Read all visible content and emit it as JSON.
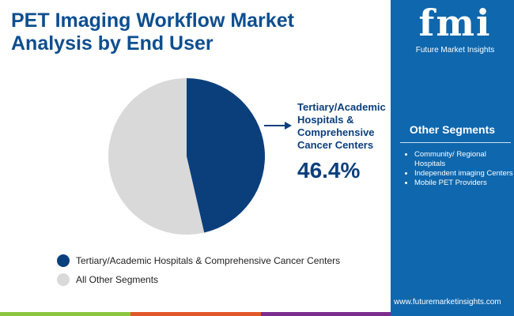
{
  "title": "PET Imaging Workflow Market Analysis by End User",
  "chart_data": {
    "type": "pie",
    "slices": [
      {
        "name": "Tertiary/Academic Hospitals & Comprehensive Cancer Centers",
        "value": 46.4,
        "color": "#0b3f7c"
      },
      {
        "name": "All Other Segments",
        "value": 53.6,
        "color": "#d9d9d9"
      }
    ],
    "callout": {
      "label": "Tertiary/Academic Hospitals & Comprehensive Cancer Centers",
      "value": "46.4%"
    },
    "legend": [
      "Tertiary/Academic Hospitals & Comprehensive Cancer Centers",
      "All Other Segments"
    ],
    "legend_placement": "bottom"
  },
  "sidebar": {
    "logo": "fmi",
    "logo_text": "Future Market Insights",
    "heading": "Other Segments",
    "items": [
      "Community/ Regional Hospitals",
      "Independent imaging Centers",
      "Mobile PET Providers"
    ],
    "url": "www.futuremarketinsights.com",
    "color": "#0f67ad"
  },
  "footer_colors": [
    "#8cc63f",
    "#e2582a",
    "#7b2d8e"
  ]
}
